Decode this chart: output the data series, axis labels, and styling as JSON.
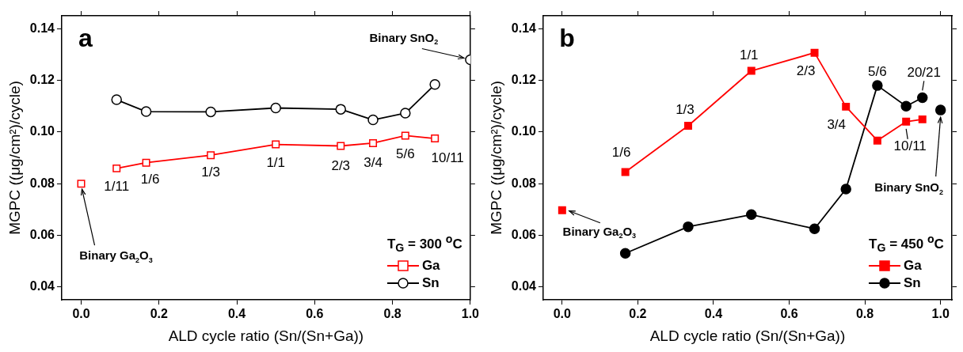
{
  "chart_data": [
    {
      "type": "line",
      "title": "a",
      "xlabel": "ALD cycle ratio (Sn/(Sn+Ga))",
      "ylabel": "MGPC ((μg/cm²)/cycle)",
      "legend_title": "T$_{G}$ = 300 $^{o}$C",
      "legend": "bottom right",
      "grid": false,
      "xlim": [
        -0.05,
        1.0
      ],
      "xticks": [
        {
          "value": 0,
          "label": "0.0"
        },
        {
          "value": 0.2,
          "label": "0.2"
        },
        {
          "value": 0.4,
          "label": "0.4"
        },
        {
          "value": 0.6,
          "label": "0.6"
        },
        {
          "value": 0.8,
          "label": "0.8"
        },
        {
          "value": 1.0,
          "label": "1.0"
        }
      ],
      "ylim": [
        0.035,
        0.145
      ],
      "yticks": [
        {
          "value": 0.04,
          "label": "0.04"
        },
        {
          "value": 0.06,
          "label": "0.06"
        },
        {
          "value": 0.08,
          "label": "0.08"
        },
        {
          "value": 0.1,
          "label": "0.10"
        },
        {
          "value": 0.12,
          "label": "0.12"
        },
        {
          "value": 0.14,
          "label": "0.14"
        }
      ],
      "series": [
        {
          "name": "Ga",
          "color": "#ff0000",
          "marker": "square",
          "x": [
            0.091,
            0.167,
            0.333,
            0.5,
            0.667,
            0.75,
            0.833,
            0.909
          ],
          "values": [
            0.0859,
            0.0881,
            0.091,
            0.0952,
            0.0946,
            0.0957,
            0.0986,
            0.0975
          ]
        },
        {
          "name": "Sn",
          "color": "#000000",
          "marker": "circle",
          "x": [
            0.091,
            0.167,
            0.333,
            0.5,
            0.667,
            0.75,
            0.833,
            0.909
          ],
          "values": [
            0.1125,
            0.1079,
            0.1078,
            0.1093,
            0.1088,
            0.1047,
            0.1073,
            0.1184
          ]
        },
        {
          "type": "scatter",
          "color": "#ff0000",
          "marker": "square",
          "x": [
            0
          ],
          "values": [
            0.08
          ]
        },
        {
          "type": "scatter",
          "color": "#000000",
          "marker": "circle",
          "x": [
            1.0
          ],
          "values": [
            0.128
          ]
        }
      ],
      "annotations": [
        {
          "text": "1/11",
          "x": 0.091,
          "y": 0.0859
        },
        {
          "text": "1/6",
          "x": 0.167,
          "y": 0.0881
        },
        {
          "text": "1/3",
          "x": 0.333,
          "y": 0.091
        },
        {
          "text": "1/1",
          "x": 0.5,
          "y": 0.0952
        },
        {
          "text": "2/3",
          "x": 0.667,
          "y": 0.0946
        },
        {
          "text": "3/4",
          "x": 0.75,
          "y": 0.0957
        },
        {
          "text": "5/6",
          "x": 0.833,
          "y": 0.0986
        },
        {
          "text": "10/11",
          "x": 0.909,
          "y": 0.0975
        },
        {
          "text": "Binary SnO$_{2}$",
          "x": 1.0,
          "y": 0.128
        },
        {
          "text": "Binary Ga$_{2}$O$_{3}$",
          "x": 0,
          "y": 0.08
        }
      ]
    },
    {
      "type": "line",
      "title": "b",
      "xlabel": "ALD cycle ratio (Sn/(Sn+Ga))",
      "ylabel": "MGPC ((μg/cm²)/cycle)",
      "legend_title": "T$_{G}$ = 450 $^{o}$C",
      "legend": "bottom right",
      "grid": false,
      "xlim": [
        -0.05,
        1.03
      ],
      "xticks": [
        {
          "value": 0,
          "label": "0.0"
        },
        {
          "value": 0.2,
          "label": "0.2"
        },
        {
          "value": 0.4,
          "label": "0.4"
        },
        {
          "value": 0.6,
          "label": "0.6"
        },
        {
          "value": 0.8,
          "label": "0.8"
        },
        {
          "value": 1.0,
          "label": "1.0"
        }
      ],
      "ylim": [
        0.035,
        0.145
      ],
      "yticks": [
        {
          "value": 0.04,
          "label": "0.04"
        },
        {
          "value": 0.06,
          "label": "0.06"
        },
        {
          "value": 0.08,
          "label": "0.08"
        },
        {
          "value": 0.1,
          "label": "0.10"
        },
        {
          "value": 0.12,
          "label": "0.12"
        },
        {
          "value": 0.14,
          "label": "0.14"
        }
      ],
      "series": [
        {
          "name": "Ga",
          "color": "#ff0000",
          "marker": "square",
          "x": [
            0.167,
            0.333,
            0.5,
            0.667,
            0.75,
            0.833,
            0.909,
            0.952
          ],
          "values": [
            0.0845,
            0.1024,
            0.1237,
            0.1307,
            0.1098,
            0.0967,
            0.104,
            0.1049
          ]
        },
        {
          "name": "Sn",
          "color": "#000000",
          "marker": "circle",
          "x": [
            0.167,
            0.333,
            0.5,
            0.667,
            0.75,
            0.833,
            0.909,
            0.952
          ],
          "values": [
            0.053,
            0.0633,
            0.068,
            0.0625,
            0.0779,
            0.118,
            0.11,
            0.1133
          ]
        },
        {
          "type": "scatter",
          "color": "#ff0000",
          "marker": "square",
          "x": [
            0
          ],
          "values": [
            0.0697
          ]
        },
        {
          "type": "scatter",
          "color": "#000000",
          "marker": "circle",
          "x": [
            1.0
          ],
          "values": [
            0.1085
          ]
        }
      ],
      "annotations": [
        {
          "text": "1/6",
          "x": 0.167,
          "y": 0.0845
        },
        {
          "text": "1/3",
          "x": 0.333,
          "y": 0.1024
        },
        {
          "text": "1/1",
          "x": 0.5,
          "y": 0.1237
        },
        {
          "text": "2/3",
          "x": 0.667,
          "y": 0.1307
        },
        {
          "text": "3/4",
          "x": 0.75,
          "y": 0.1098
        },
        {
          "text": "5/6",
          "x": 0.833,
          "y": 0.118
        },
        {
          "text": "10/11",
          "x": 0.909,
          "y": 0.104
        },
        {
          "text": "20/21",
          "x": 0.952,
          "y": 0.1133
        },
        {
          "text": "Binary SnO$_{2}$",
          "x": 1.0,
          "y": 0.1085
        },
        {
          "text": "Binary Ga$_{2}$O$_{3}$",
          "x": 0,
          "y": 0.0697
        }
      ]
    }
  ]
}
